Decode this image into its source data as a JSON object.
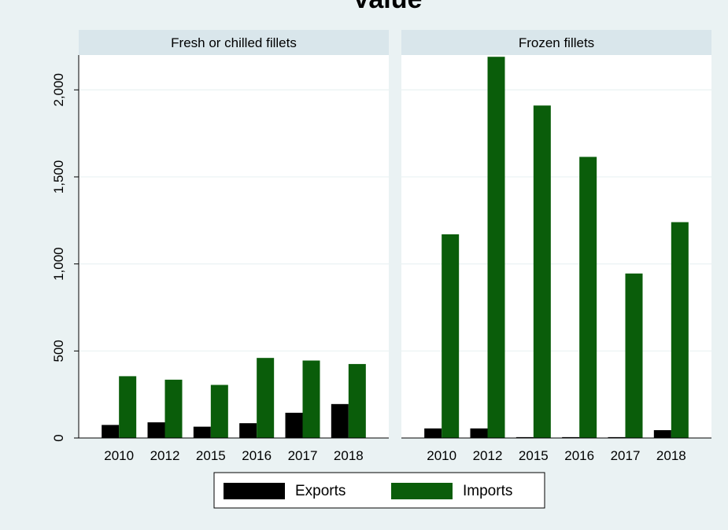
{
  "title": "Value",
  "colors": {
    "background": "#eaf2f3",
    "panel": "#ffffff",
    "strip": "#d9e6eb",
    "grid": "#eaf2f3",
    "axis": "#000000",
    "text": "#000000"
  },
  "legend": {
    "position": "bottom",
    "items": [
      {
        "label": "Exports",
        "color": "#000000"
      },
      {
        "label": "Imports",
        "color": "#0a5d0a"
      }
    ]
  },
  "chart_data": [
    {
      "type": "bar",
      "panel_title": "Fresh or chilled fillets",
      "categories": [
        "2010",
        "2012",
        "2015",
        "2016",
        "2017",
        "2018"
      ],
      "series": [
        {
          "name": "Exports",
          "color": "#000000",
          "values": [
            75,
            90,
            65,
            85,
            145,
            195
          ]
        },
        {
          "name": "Imports",
          "color": "#0a5d0a",
          "values": [
            355,
            335,
            305,
            460,
            445,
            425
          ]
        }
      ],
      "ylim": [
        0,
        2200
      ],
      "yticks": [
        0,
        500,
        1000,
        1500,
        2000
      ],
      "ytick_labels": [
        "0",
        "500",
        "1,000",
        "1,500",
        "2,000"
      ],
      "grid": true
    },
    {
      "type": "bar",
      "panel_title": "Frozen fillets",
      "categories": [
        "2010",
        "2012",
        "2015",
        "2016",
        "2017",
        "2018"
      ],
      "series": [
        {
          "name": "Exports",
          "color": "#000000",
          "values": [
            55,
            55,
            5,
            5,
            5,
            45
          ]
        },
        {
          "name": "Imports",
          "color": "#0a5d0a",
          "values": [
            1170,
            2190,
            1910,
            1615,
            945,
            1240
          ]
        }
      ],
      "ylim": [
        0,
        2200
      ],
      "grid": true
    }
  ]
}
